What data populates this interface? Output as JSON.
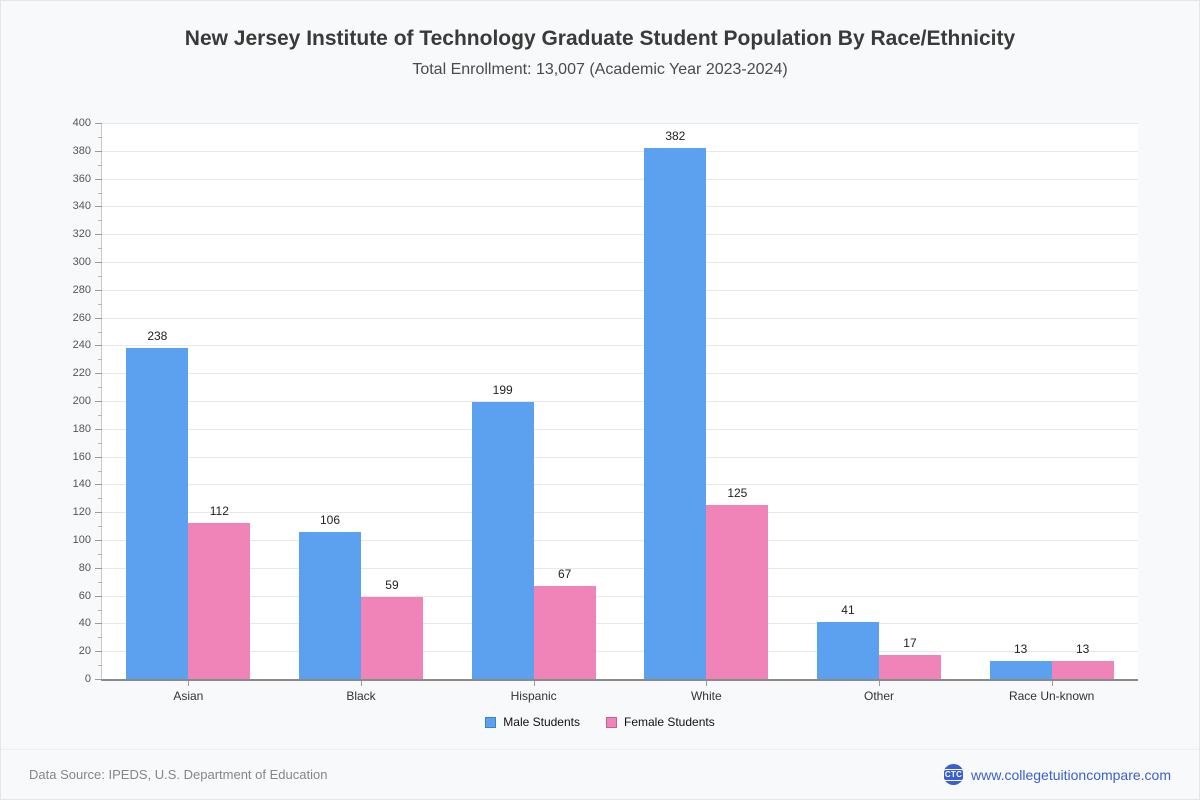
{
  "header": {
    "title": "New Jersey Institute of Technology Graduate Student Population By Race/Ethnicity",
    "subtitle": "Total Enrollment: 13,007 (Academic Year 2023-2024)"
  },
  "chart_data": {
    "type": "bar",
    "title": "New Jersey Institute of Technology Graduate Student Population By Race/Ethnicity",
    "subtitle": "Total Enrollment: 13,007 (Academic Year 2023-2024)",
    "categories": [
      "Asian",
      "Black",
      "Hispanic",
      "White",
      "Other",
      "Race Un-known"
    ],
    "series": [
      {
        "name": "Male Students",
        "color": "#5ba1ef",
        "border_color": "#3d82c4",
        "values": [
          238,
          106,
          199,
          382,
          41,
          13
        ]
      },
      {
        "name": "Female Students",
        "color": "#f083b8",
        "border_color": "#c75f96",
        "values": [
          112,
          59,
          67,
          125,
          17,
          13
        ]
      }
    ],
    "xlabel": "",
    "ylabel": "",
    "ylim": [
      0,
      400
    ],
    "ytick_step": 20,
    "ytick_minor_step": 10,
    "grid": "horizontal",
    "legend_position": "bottom"
  },
  "footer": {
    "data_source": "Data Source: IPEDS, U.S. Department of Education",
    "logo_text": "CTC",
    "website": "www.collegetuitioncompare.com",
    "link_color": "#3a5fd3",
    "badge_color": "#3a5fd3"
  }
}
